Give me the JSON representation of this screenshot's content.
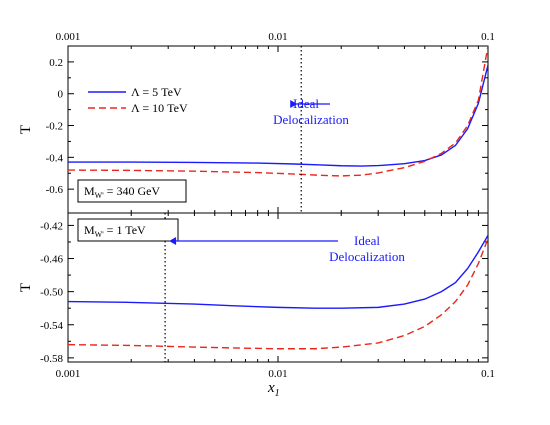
{
  "chart_data": {
    "type": "line",
    "x_scale": "log",
    "top_axis_tick_labels": [
      "0.001",
      "0.01",
      "0.1"
    ],
    "x_tick_labels": [
      "0.001",
      "0.01",
      "0.1"
    ],
    "xlabel_main": "x",
    "xlabel_sub": "1",
    "colors": {
      "series_a": "#1a1aff",
      "series_b": "#e8281e",
      "annotation": "#1a1aff"
    },
    "panels": [
      {
        "ylabel": "T",
        "ylim": [
          -0.75,
          0.3
        ],
        "y_ticks": [
          0.2,
          0,
          -0.2,
          -0.4,
          -0.6
        ],
        "y_tick_labels": [
          "0.2",
          "0",
          "-0.2",
          "-0.4",
          "-0.6"
        ],
        "legend": [
          {
            "label": "Λ = 5 TeV",
            "style": "solid",
            "color": "#1a1aff"
          },
          {
            "label": "Λ = 10 TeV",
            "style": "dashed",
            "color": "#e8281e"
          }
        ],
        "box_main": "M",
        "box_sub": "W'",
        "box_rest": " = 340 GeV",
        "vline_x": 0.0129,
        "annotation": [
          "Ideal",
          "Delocalization"
        ],
        "series": [
          {
            "legend_label": "Λ = 5 TeV",
            "style": "solid",
            "points": [
              [
                0.001,
                -0.43
              ],
              [
                0.002,
                -0.43
              ],
              [
                0.004,
                -0.432
              ],
              [
                0.008,
                -0.436
              ],
              [
                0.012,
                -0.442
              ],
              [
                0.016,
                -0.448
              ],
              [
                0.02,
                -0.453
              ],
              [
                0.025,
                -0.455
              ],
              [
                0.03,
                -0.452
              ],
              [
                0.04,
                -0.44
              ],
              [
                0.05,
                -0.42
              ],
              [
                0.06,
                -0.385
              ],
              [
                0.07,
                -0.325
              ],
              [
                0.08,
                -0.22
              ],
              [
                0.09,
                -0.06
              ],
              [
                0.1,
                0.18
              ]
            ]
          },
          {
            "legend_label": "Λ = 10 TeV",
            "style": "dashed",
            "points": [
              [
                0.001,
                -0.48
              ],
              [
                0.002,
                -0.482
              ],
              [
                0.004,
                -0.487
              ],
              [
                0.008,
                -0.496
              ],
              [
                0.012,
                -0.505
              ],
              [
                0.016,
                -0.513
              ],
              [
                0.02,
                -0.517
              ],
              [
                0.025,
                -0.512
              ],
              [
                0.03,
                -0.498
              ],
              [
                0.04,
                -0.465
              ],
              [
                0.05,
                -0.425
              ],
              [
                0.06,
                -0.375
              ],
              [
                0.07,
                -0.31
              ],
              [
                0.08,
                -0.2
              ],
              [
                0.09,
                -0.04
              ],
              [
                0.1,
                0.3
              ]
            ]
          }
        ]
      },
      {
        "ylabel": "T",
        "ylim": [
          -0.585,
          -0.405
        ],
        "y_ticks": [
          -0.42,
          -0.46,
          -0.5,
          -0.54,
          -0.58
        ],
        "y_tick_labels": [
          "-0.42",
          "-0.46",
          "-0.50",
          "-0.54",
          "-0.58"
        ],
        "box_main": "M",
        "box_sub": "W'",
        "box_rest": " = 1 TeV",
        "vline_x": 0.0029,
        "annotation": [
          "Ideal",
          "Delocalization"
        ],
        "series": [
          {
            "style": "solid",
            "points": [
              [
                0.001,
                -0.512
              ],
              [
                0.002,
                -0.513
              ],
              [
                0.004,
                -0.515
              ],
              [
                0.006,
                -0.517
              ],
              [
                0.01,
                -0.519
              ],
              [
                0.015,
                -0.52
              ],
              [
                0.02,
                -0.52
              ],
              [
                0.03,
                -0.519
              ],
              [
                0.04,
                -0.515
              ],
              [
                0.05,
                -0.509
              ],
              [
                0.06,
                -0.5
              ],
              [
                0.07,
                -0.489
              ],
              [
                0.08,
                -0.472
              ],
              [
                0.09,
                -0.452
              ],
              [
                0.1,
                -0.432
              ]
            ]
          },
          {
            "style": "dashed",
            "points": [
              [
                0.001,
                -0.564
              ],
              [
                0.002,
                -0.565
              ],
              [
                0.004,
                -0.567
              ],
              [
                0.006,
                -0.568
              ],
              [
                0.01,
                -0.569
              ],
              [
                0.015,
                -0.569
              ],
              [
                0.02,
                -0.567
              ],
              [
                0.03,
                -0.562
              ],
              [
                0.04,
                -0.553
              ],
              [
                0.05,
                -0.542
              ],
              [
                0.06,
                -0.528
              ],
              [
                0.07,
                -0.512
              ],
              [
                0.08,
                -0.492
              ],
              [
                0.09,
                -0.466
              ],
              [
                0.1,
                -0.436
              ]
            ]
          }
        ]
      }
    ]
  }
}
